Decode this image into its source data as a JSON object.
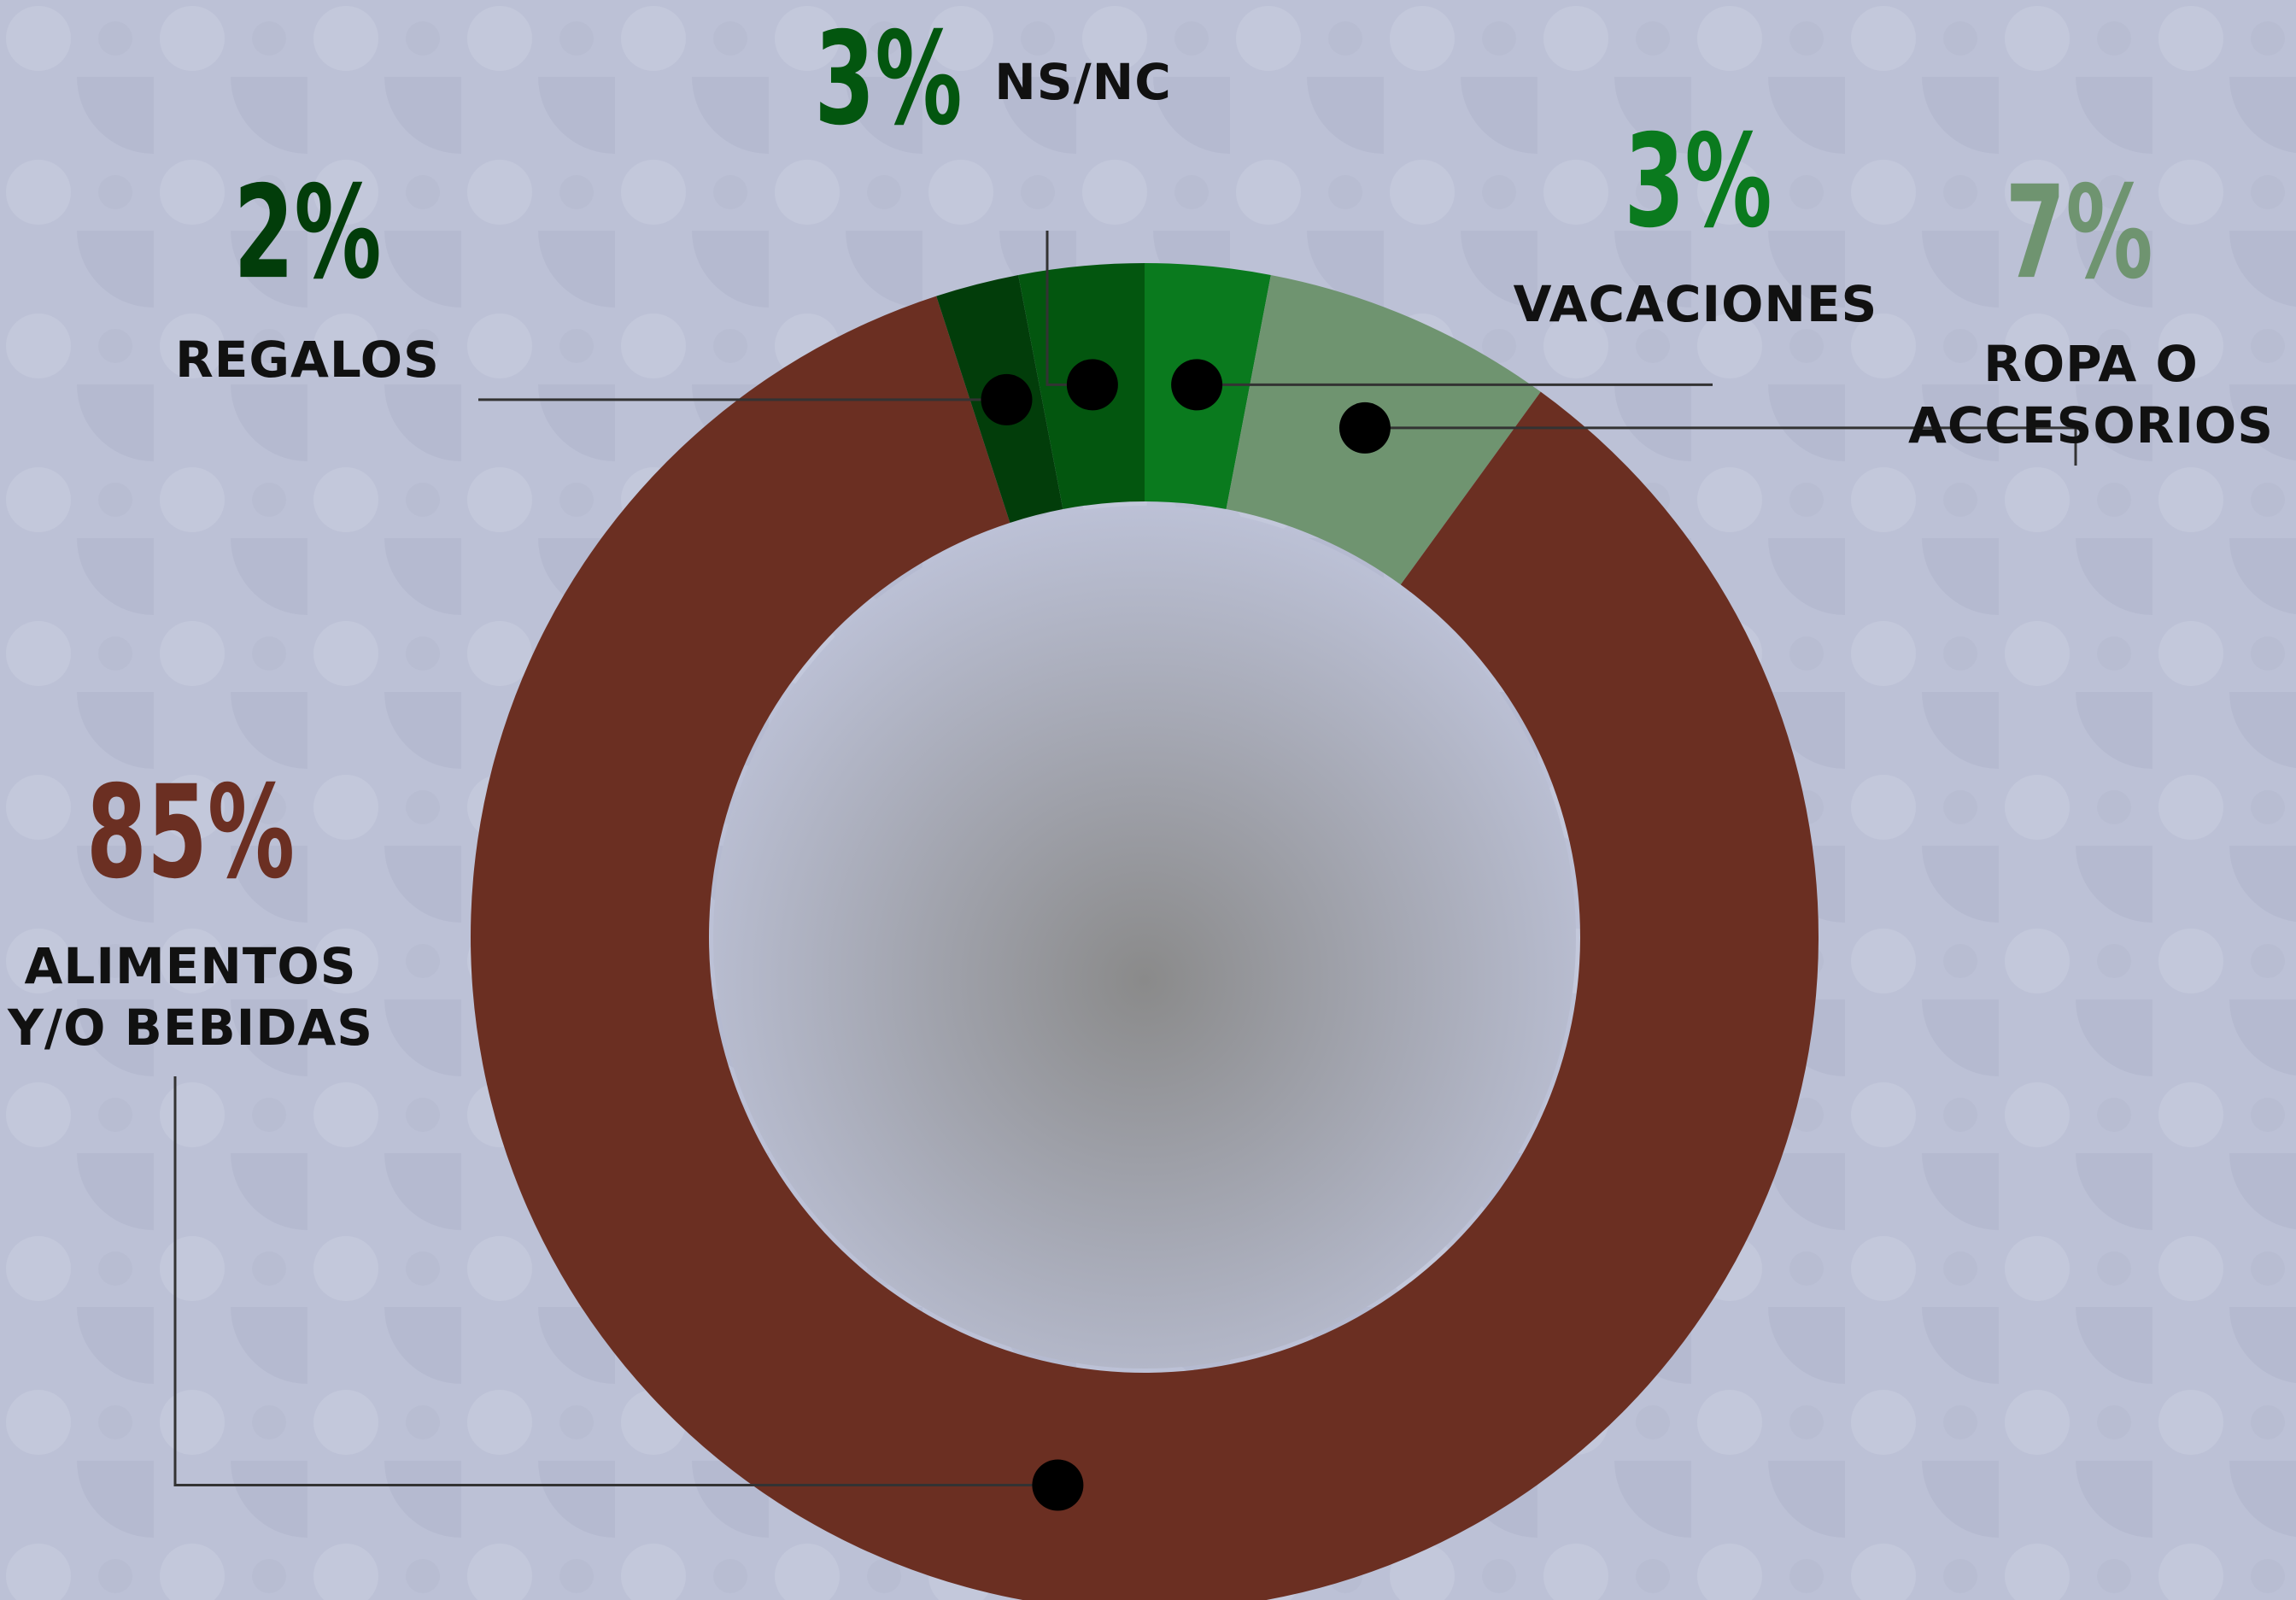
{
  "chart_data": {
    "type": "donut",
    "categories": [
      "VACACIONES",
      "ROPA O ACCESORIOS",
      "ALIMENTOS Y/O BEBIDAS",
      "REGALOS",
      "NS/NC"
    ],
    "values": [
      3,
      7,
      85,
      2,
      3
    ],
    "value_labels": [
      "3%",
      "7%",
      "85%",
      "2%",
      "3%"
    ],
    "colors": [
      "#0a7a1e",
      "#6f9470",
      "#6b2f22",
      "#023d0a",
      "#03560f"
    ]
  }
}
